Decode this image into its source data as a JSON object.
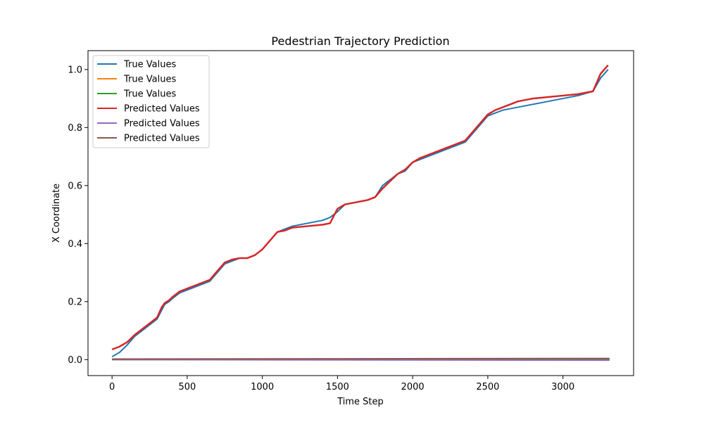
{
  "chart_data": {
    "type": "line",
    "title": "Pedestrian Trajectory Prediction",
    "xlabel": "Time Step",
    "ylabel": "X Coordinate",
    "xlim": [
      -160,
      3470
    ],
    "ylim": [
      -0.055,
      1.065
    ],
    "xticks": [
      0,
      500,
      1000,
      1500,
      2000,
      2500,
      3000
    ],
    "yticks": [
      0.0,
      0.2,
      0.4,
      0.6,
      0.8,
      1.0
    ],
    "xtick_labels": [
      "0",
      "500",
      "1000",
      "1500",
      "2000",
      "2500",
      "3000"
    ],
    "ytick_labels": [
      "0.0",
      "0.2",
      "0.4",
      "0.6",
      "0.8",
      "1.0"
    ],
    "grid": false,
    "legend_position": "upper-left",
    "series": [
      {
        "name": "True Values",
        "color": "#1f77b4",
        "x": [
          0,
          50,
          100,
          150,
          200,
          250,
          300,
          330,
          350,
          380,
          400,
          450,
          500,
          550,
          600,
          650,
          700,
          750,
          800,
          850,
          900,
          950,
          1000,
          1050,
          1100,
          1150,
          1200,
          1300,
          1400,
          1450,
          1500,
          1550,
          1600,
          1650,
          1700,
          1750,
          1800,
          1850,
          1900,
          1950,
          2000,
          2050,
          2100,
          2150,
          2200,
          2250,
          2300,
          2350,
          2400,
          2450,
          2500,
          2550,
          2600,
          2700,
          2800,
          2900,
          3000,
          3100,
          3200,
          3250,
          3300
        ],
        "y": [
          0.01,
          0.025,
          0.05,
          0.08,
          0.1,
          0.12,
          0.14,
          0.17,
          0.19,
          0.2,
          0.21,
          0.23,
          0.24,
          0.25,
          0.26,
          0.27,
          0.3,
          0.33,
          0.34,
          0.35,
          0.35,
          0.36,
          0.38,
          0.41,
          0.44,
          0.45,
          0.46,
          0.47,
          0.48,
          0.49,
          0.51,
          0.535,
          0.54,
          0.545,
          0.55,
          0.56,
          0.6,
          0.62,
          0.64,
          0.65,
          0.68,
          0.69,
          0.7,
          0.71,
          0.72,
          0.73,
          0.74,
          0.75,
          0.78,
          0.81,
          0.84,
          0.85,
          0.86,
          0.87,
          0.88,
          0.89,
          0.9,
          0.91,
          0.925,
          0.97,
          1.0
        ]
      },
      {
        "name": "True Values",
        "color": "#ff7f0e",
        "x": [
          0,
          3310
        ],
        "y": [
          0.0,
          0.0
        ]
      },
      {
        "name": "True Values",
        "color": "#2ca02c",
        "x": [
          0,
          3310
        ],
        "y": [
          0.0,
          0.0
        ]
      },
      {
        "name": "Predicted Values",
        "color": "#d62728",
        "x": [
          0,
          50,
          100,
          150,
          200,
          250,
          300,
          330,
          350,
          380,
          400,
          450,
          500,
          550,
          600,
          650,
          700,
          750,
          800,
          850,
          900,
          950,
          1000,
          1050,
          1100,
          1150,
          1200,
          1300,
          1400,
          1450,
          1500,
          1550,
          1600,
          1650,
          1700,
          1750,
          1800,
          1850,
          1900,
          1950,
          2000,
          2050,
          2100,
          2150,
          2200,
          2250,
          2300,
          2350,
          2400,
          2450,
          2500,
          2550,
          2600,
          2700,
          2800,
          2900,
          3000,
          3100,
          3200,
          3250,
          3300
        ],
        "y": [
          0.035,
          0.045,
          0.06,
          0.085,
          0.105,
          0.125,
          0.145,
          0.18,
          0.195,
          0.205,
          0.215,
          0.235,
          0.245,
          0.255,
          0.265,
          0.275,
          0.305,
          0.335,
          0.345,
          0.35,
          0.35,
          0.36,
          0.38,
          0.41,
          0.44,
          0.445,
          0.455,
          0.46,
          0.465,
          0.47,
          0.52,
          0.535,
          0.54,
          0.545,
          0.55,
          0.56,
          0.59,
          0.615,
          0.64,
          0.655,
          0.68,
          0.695,
          0.705,
          0.715,
          0.725,
          0.735,
          0.745,
          0.755,
          0.785,
          0.815,
          0.845,
          0.86,
          0.87,
          0.89,
          0.9,
          0.905,
          0.91,
          0.915,
          0.925,
          0.985,
          1.015
        ]
      },
      {
        "name": "Predicted Values",
        "color": "#9467bd",
        "x": [
          0,
          3310
        ],
        "y": [
          0.0,
          -0.002
        ]
      },
      {
        "name": "Predicted Values",
        "color": "#8c564b",
        "x": [
          0,
          3310
        ],
        "y": [
          0.002,
          0.004
        ]
      }
    ]
  }
}
